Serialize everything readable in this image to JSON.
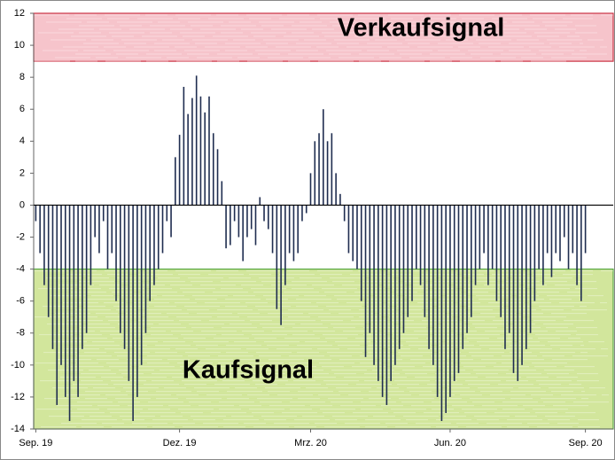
{
  "chart_data": {
    "type": "bar",
    "categories": [
      "Sep. 19",
      null,
      null,
      null,
      null,
      null,
      null,
      null,
      null,
      null,
      null,
      null,
      null,
      null,
      null,
      null,
      null,
      null,
      null,
      null,
      null,
      null,
      null,
      null,
      null,
      null,
      null,
      null,
      null,
      null,
      null,
      null,
      null,
      null,
      "Dez. 19",
      null,
      null,
      null,
      null,
      null,
      null,
      null,
      null,
      null,
      null,
      null,
      null,
      null,
      null,
      null,
      null,
      null,
      null,
      null,
      null,
      null,
      null,
      null,
      null,
      null,
      null,
      null,
      null,
      null,
      null,
      "Mrz. 20",
      null,
      null,
      null,
      null,
      null,
      null,
      null,
      null,
      null,
      null,
      null,
      null,
      null,
      null,
      null,
      null,
      null,
      null,
      null,
      null,
      null,
      null,
      null,
      null,
      null,
      null,
      null,
      null,
      null,
      null,
      null,
      null,
      "Jun. 20",
      null,
      null,
      null,
      null,
      null,
      null,
      null,
      null,
      null,
      null,
      null,
      null,
      null,
      null,
      null,
      null,
      null,
      null,
      null,
      null,
      null,
      null,
      null,
      null,
      null,
      null,
      null,
      null,
      null,
      null,
      null,
      "Sep. 20"
    ],
    "values": [
      -1,
      -3,
      -5,
      -7,
      -9,
      -12.5,
      -10,
      -12,
      -13.5,
      -11,
      -12,
      -9,
      -8,
      -5,
      -2,
      -3,
      -1,
      -4,
      -3,
      -6,
      -8,
      -9,
      -11,
      -13.5,
      -12,
      -10,
      -8,
      -6,
      -5,
      -4,
      -3,
      -1,
      -2,
      3,
      4.4,
      7.4,
      5.7,
      6.7,
      8.1,
      6.8,
      5.8,
      6.8,
      4.5,
      3.5,
      1.5,
      -2.7,
      -2.5,
      -1,
      -2,
      -3.5,
      -2,
      -1.5,
      -2.5,
      0.5,
      -1,
      -1.5,
      -3,
      -6.5,
      -7.5,
      -5,
      -3,
      -3.5,
      -3,
      -1,
      -0.5,
      2,
      4,
      4.5,
      6,
      4,
      4.5,
      2,
      0.7,
      -1,
      -3,
      -3.5,
      -4,
      -6,
      -9.5,
      -8,
      -10,
      -11,
      -12,
      -12.5,
      -11,
      -10,
      -9,
      -8,
      -7,
      -6,
      -4,
      -5,
      -7,
      -9,
      -10,
      -12,
      -13.5,
      -13,
      -12,
      -11,
      -10.5,
      -9,
      -8,
      -7,
      -5,
      -4,
      -3,
      -5,
      -4,
      -6,
      -7,
      -9,
      -8,
      -10.5,
      -11,
      -10,
      -9,
      -8,
      -6,
      -4,
      -5,
      -3,
      -4.5,
      -3,
      -3.5,
      -2,
      -4,
      -3,
      -5,
      -6,
      -3
    ],
    "color": "#1f2d50",
    "ylim": [
      -14,
      12
    ],
    "yticks": [
      -14,
      -12,
      -10,
      -8,
      -6,
      -4,
      -2,
      0,
      2,
      4,
      6,
      8,
      10,
      12
    ],
    "zones": [
      {
        "label": "Verkaufsignal",
        "range": [
          9,
          12
        ],
        "color": "#f6c4cb",
        "border": "#cc3344"
      },
      {
        "label": "Kaufsignal",
        "range": [
          -14,
          -4
        ],
        "color": "#d2e69c",
        "border": "#5aa845"
      }
    ]
  }
}
